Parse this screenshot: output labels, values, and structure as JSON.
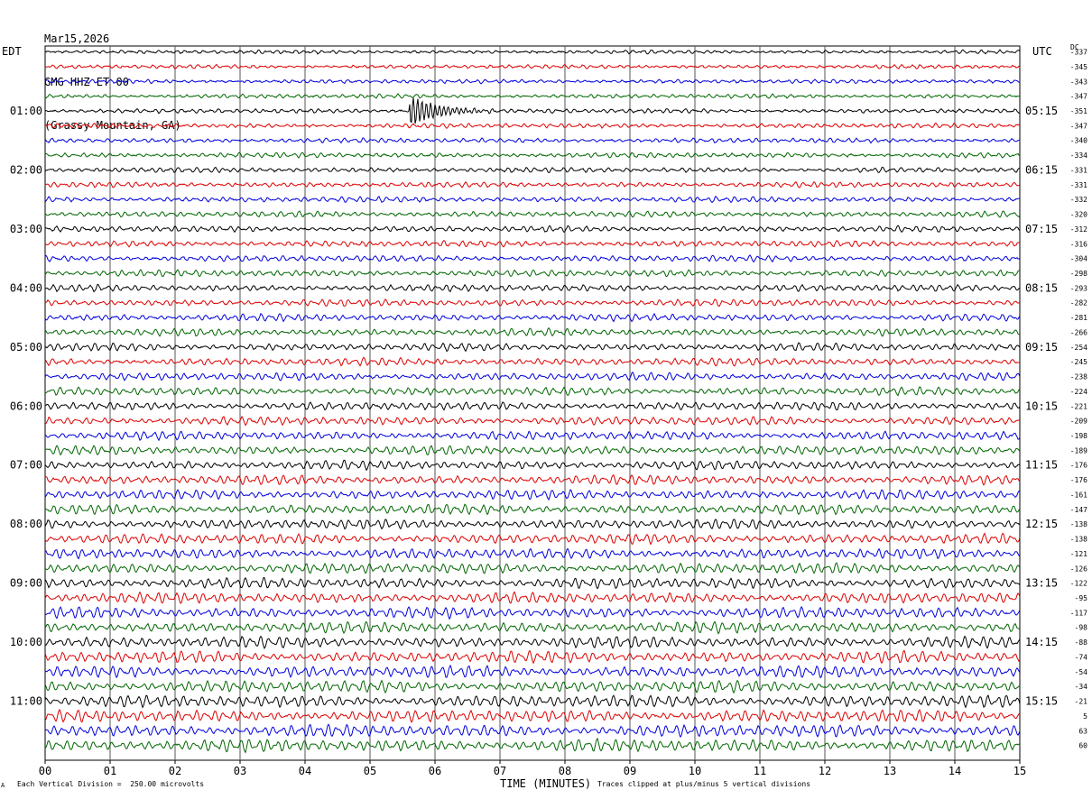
{
  "header": {
    "date": "Mar15,2026",
    "station": "GMG HHZ ET 00",
    "location": "(Grassy Mountain, GA)"
  },
  "left_timezone": "EDT",
  "right_timezone": "UTC",
  "dc_label": "DC",
  "footer": {
    "scale_note": "Each Vertical Division =  250.00 microvolts",
    "clip_note": "Traces clipped at plus/minus 5 vertical divisions",
    "corner_mark": "A"
  },
  "chart_data": {
    "type": "line",
    "subtype": "helicorder",
    "xlabel": "TIME (MINUTES)",
    "xlim": [
      0,
      15
    ],
    "x_ticks": [
      "00",
      "01",
      "02",
      "03",
      "04",
      "05",
      "06",
      "07",
      "08",
      "09",
      "10",
      "11",
      "12",
      "13",
      "14",
      "15"
    ],
    "rows": 48,
    "minutes_per_row": 15,
    "left_hour_labels": [
      "01:00",
      "02:00",
      "03:00",
      "04:00",
      "05:00",
      "06:00",
      "07:00",
      "08:00",
      "09:00",
      "10:00",
      "11:00"
    ],
    "right_hour_labels": [
      "05:15",
      "06:15",
      "07:15",
      "08:15",
      "09:15",
      "10:15",
      "11:15",
      "12:15",
      "13:15",
      "14:15",
      "15:15"
    ],
    "dc_offsets": [
      "-337",
      "-345",
      "-343",
      "-347",
      "-351",
      "-347",
      "-340",
      "-334",
      "-331",
      "-331",
      "-332",
      "-320",
      "-312",
      "-316",
      "-304",
      "-298",
      "-293",
      "-282",
      "-281",
      "-266",
      "-254",
      "-245",
      "-238",
      "-224",
      "-221",
      "-209",
      "-198",
      "-189",
      "-176",
      "-176",
      "-161",
      "-147",
      "-138",
      "-138",
      "-121",
      "-126",
      "-122",
      "-95",
      "-117",
      "-98",
      "-88",
      "-74",
      "-54",
      "-34",
      "-21",
      "5",
      "63",
      "60"
    ],
    "trace_colors": [
      "#000000",
      "#dd0000",
      "#0000dd",
      "#006600"
    ],
    "grid": "vertical-minute-lines",
    "events": [
      {
        "row": 4,
        "start_min": 5.6,
        "end_min": 7.0,
        "peak_amplitude_div": 1.2
      }
    ]
  }
}
